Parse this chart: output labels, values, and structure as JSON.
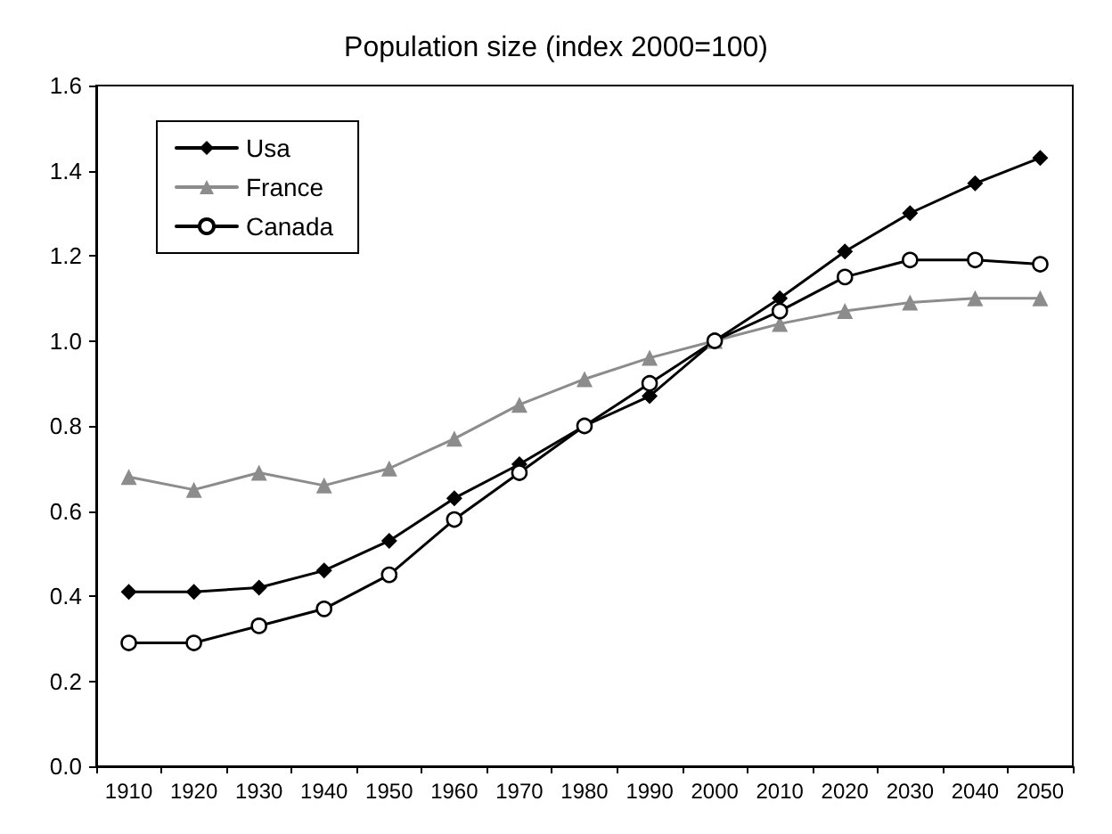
{
  "chart_data": {
    "type": "line",
    "title": "Population size (index 2000=100)",
    "categories": [
      "1910",
      "1920",
      "1930",
      "1940",
      "1950",
      "1960",
      "1970",
      "1980",
      "1990",
      "2000",
      "2010",
      "2020",
      "2030",
      "2040",
      "2050"
    ],
    "series": [
      {
        "name": "Usa",
        "color": "#000000",
        "marker": "diamond",
        "values": [
          0.41,
          0.41,
          0.42,
          0.46,
          0.53,
          0.63,
          0.71,
          0.8,
          0.87,
          1.0,
          1.1,
          1.21,
          1.3,
          1.37,
          1.43
        ]
      },
      {
        "name": "France",
        "color": "#8c8c8c",
        "marker": "triangle",
        "values": [
          0.68,
          0.65,
          0.69,
          0.66,
          0.7,
          0.77,
          0.85,
          0.91,
          0.96,
          1.0,
          1.04,
          1.07,
          1.09,
          1.1,
          1.1
        ]
      },
      {
        "name": "Canada",
        "color": "#000000",
        "marker": "circle",
        "values": [
          0.29,
          0.29,
          0.33,
          0.37,
          0.45,
          0.58,
          0.69,
          0.8,
          0.9,
          1.0,
          1.07,
          1.15,
          1.19,
          1.19,
          1.18
        ]
      }
    ],
    "ylim": [
      0,
      1.6
    ],
    "yticks": [
      {
        "value": 0,
        "label": "0.0"
      },
      0.2,
      0.4,
      0.6,
      0.8,
      {
        "value": 1,
        "label": "1.0"
      },
      1.2,
      1.4,
      1.6
    ],
    "grid": false,
    "legend": "top left",
    "line_style": "solid"
  }
}
